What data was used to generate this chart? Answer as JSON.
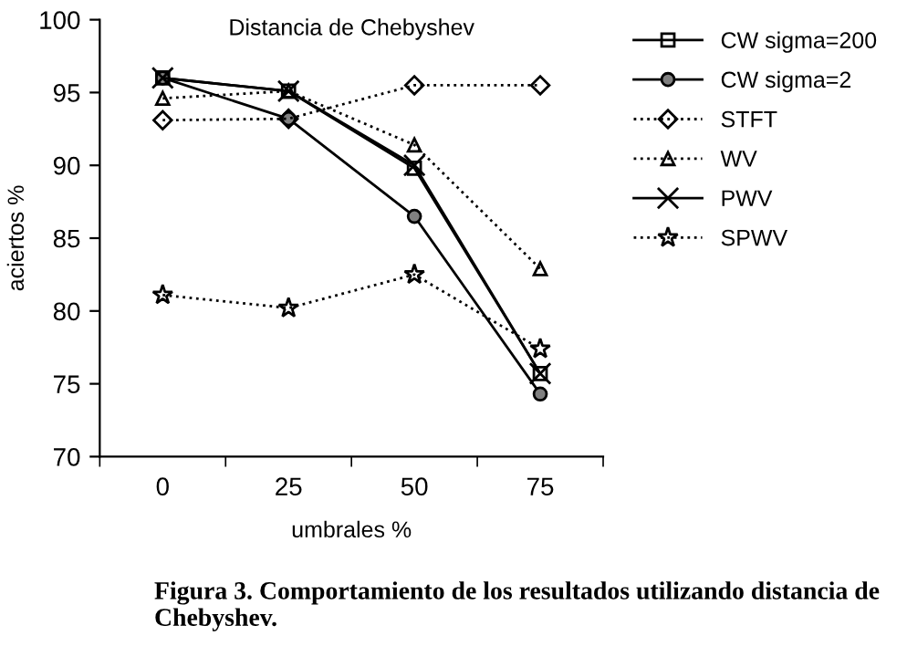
{
  "chart_data": {
    "type": "line",
    "title": "Distancia de Chebyshev",
    "xlabel": "umbrales %",
    "ylabel": "aciertos %",
    "categories": [
      "0",
      "25",
      "50",
      "75"
    ],
    "series": [
      {
        "name": "CW sigma=200",
        "color": "#000000",
        "marker": "square",
        "line_style": "solid",
        "values": [
          96,
          95.1,
          89.8,
          75.7
        ]
      },
      {
        "name": "CW sigma=2",
        "color": "#000000",
        "marker": "circle",
        "line_style": "solid",
        "values": [
          96,
          93.2,
          86.5,
          74.3
        ]
      },
      {
        "name": "STFT",
        "color": "#000000",
        "marker": "diamond",
        "line_style": "dotted",
        "values": [
          93.1,
          93.2,
          95.5,
          95.5
        ]
      },
      {
        "name": "WV",
        "color": "#000000",
        "marker": "triangle",
        "line_style": "dotted",
        "values": [
          94.6,
          95.1,
          91.4,
          82.9
        ]
      },
      {
        "name": "PWV",
        "color": "#000000",
        "marker": "cross",
        "line_style": "solid",
        "values": [
          96,
          95.1,
          90,
          75.7
        ]
      },
      {
        "name": "SPWV",
        "color": "#000000",
        "marker": "star",
        "line_style": "dotted",
        "values": [
          81.1,
          80.2,
          82.5,
          77.4
        ]
      }
    ],
    "ylim": [
      70,
      100
    ],
    "yticks": [
      70,
      75,
      80,
      85,
      90,
      95,
      100
    ],
    "grid": false,
    "legend": "right",
    "annotations": [
      "Figura 3. Comportamiento de los resultados utilizando distancia de Chebyshev."
    ]
  }
}
